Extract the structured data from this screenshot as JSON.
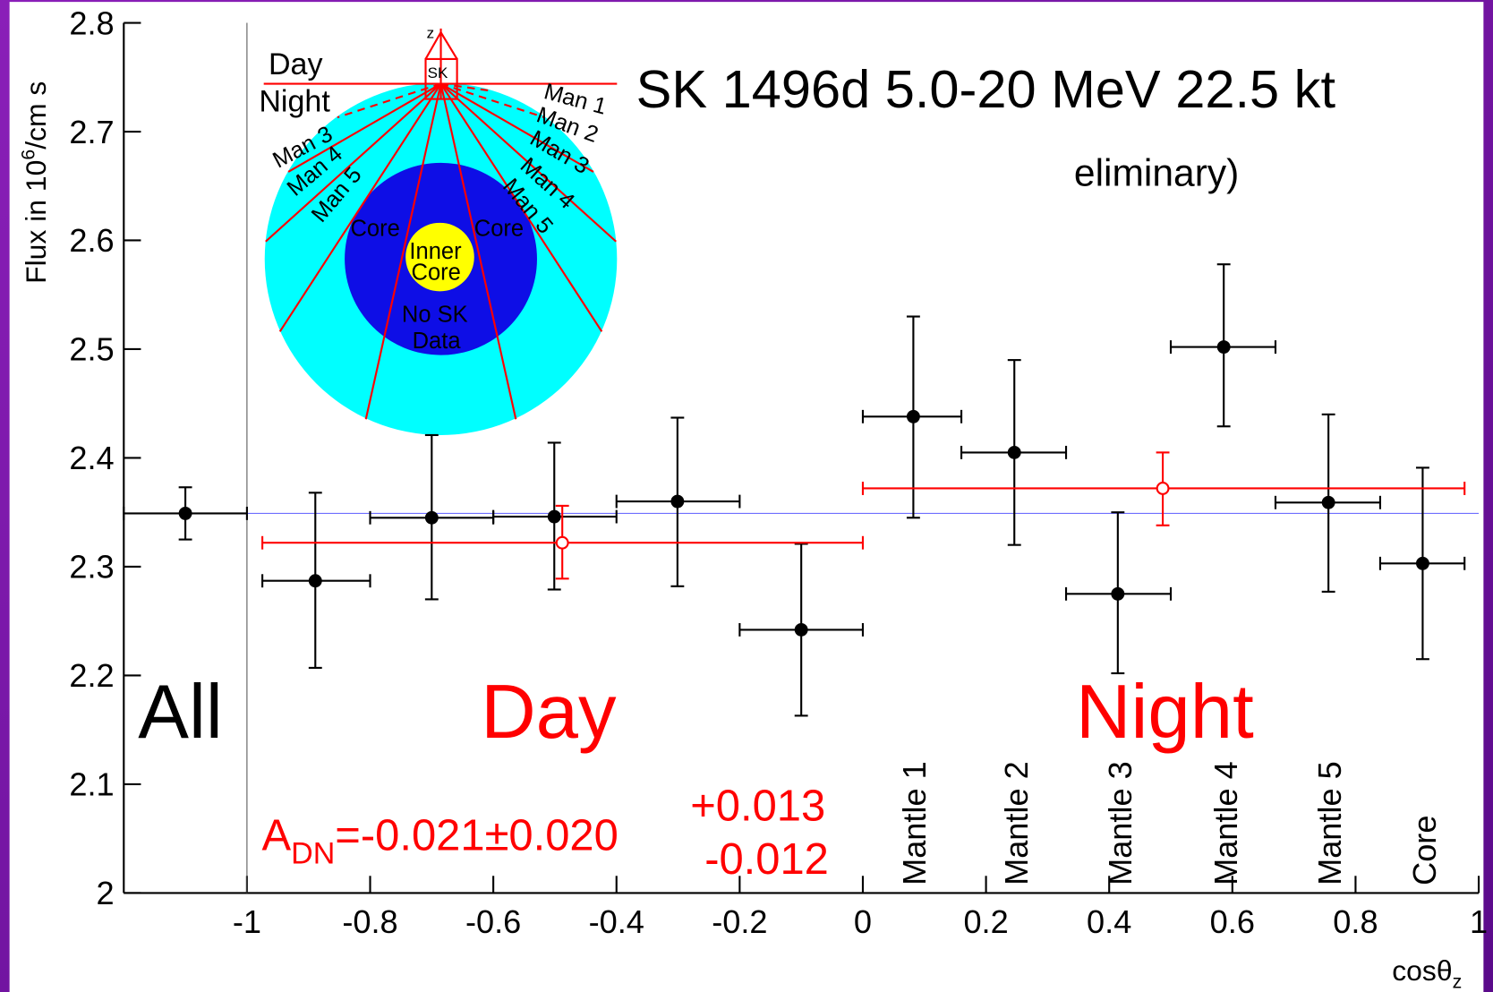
{
  "chart_data": {
    "type": "errorbar",
    "title": "SK 1496d 5.0-20 MeV 22.5 kt",
    "subtitle": "eliminary)",
    "ylabel": {
      "text": "Flux in 10",
      "sup": "6",
      "rest": "/cm s"
    },
    "xlabel": {
      "text": "cosθ",
      "sub": "z"
    },
    "xlim": [
      -1.2,
      1
    ],
    "ylim": [
      2,
      2.8
    ],
    "xticks": [
      -1,
      -0.8,
      -0.6,
      -0.4,
      -0.2,
      0,
      0.2,
      0.4,
      0.6,
      0.8,
      1
    ],
    "yticks": [
      2,
      2.1,
      2.2,
      2.3,
      2.4,
      2.5,
      2.6,
      2.7,
      2.8
    ],
    "reference_line": {
      "value": 2.349,
      "color": "#6f6fff"
    },
    "divider_x": -1,
    "series": [
      {
        "color": "#000000",
        "marker": "filled",
        "x": [
          -1.1,
          -0.889,
          -0.7,
          -0.501,
          -0.301,
          -0.1,
          0.082,
          0.246,
          0.414,
          0.586,
          0.756,
          0.909
        ],
        "values": [
          2.349,
          2.287,
          2.345,
          2.346,
          2.36,
          2.242,
          2.438,
          2.405,
          2.275,
          2.502,
          2.359,
          2.303
        ],
        "xlo": [
          -1.2,
          -0.975,
          -0.8,
          -0.6,
          -0.4,
          -0.2,
          0,
          0.16,
          0.33,
          0.5,
          0.67,
          0.84
        ],
        "xhi": [
          -1,
          -0.8,
          -0.6,
          -0.4,
          -0.2,
          0,
          0.16,
          0.33,
          0.5,
          0.67,
          0.84,
          0.977
        ],
        "ylo": [
          2.325,
          2.207,
          2.27,
          2.279,
          2.282,
          2.163,
          2.345,
          2.32,
          2.202,
          2.429,
          2.277,
          2.215
        ],
        "yhi": [
          2.373,
          2.368,
          2.421,
          2.414,
          2.437,
          2.321,
          2.53,
          2.49,
          2.35,
          2.578,
          2.44,
          2.391
        ]
      },
      {
        "color": "#ff0000",
        "marker": "open",
        "x": [
          -0.488,
          0.487
        ],
        "values": [
          2.322,
          2.372
        ],
        "xlo": [
          -0.975,
          0
        ],
        "xhi": [
          0,
          0.977
        ],
        "ylo": [
          2.289,
          2.338
        ],
        "yhi": [
          2.356,
          2.405
        ]
      }
    ],
    "annotations": [
      "All",
      "Day",
      "Night"
    ],
    "region_labels": [
      "Mantle 1",
      "Mantle 2",
      "Mantle 3",
      "Mantle 4",
      "Mantle 5",
      "Core"
    ],
    "asymmetry": {
      "symbol": "A",
      "sub": "DN",
      "text": "=-0.021±0.020",
      "upper": "+0.013",
      "lower": "-0.012"
    },
    "inset_labels": [
      "Day",
      "Night",
      "Man 1",
      "Man 2",
      "Man 3",
      "Man 4",
      "Man 5",
      "Man 3",
      "Man 4",
      "Man 5",
      "Core",
      "Core",
      "Inner",
      "Core",
      "No SK",
      "Data",
      "SK",
      "z"
    ]
  }
}
